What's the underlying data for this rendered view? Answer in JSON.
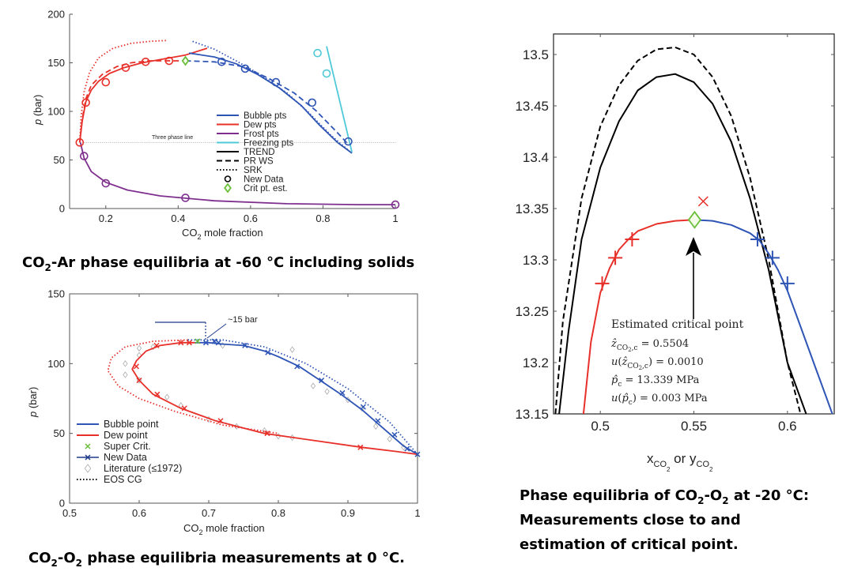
{
  "captions": {
    "ar": {
      "pre": "CO",
      "sub": "2",
      "post": "-Ar phase equilibria at -60 °C including solids"
    },
    "o2_0": {
      "pre": "CO",
      "sub1": "2",
      "mid": "-O",
      "sub2": "2",
      "post": " phase equilibria measurements at 0 °C."
    },
    "o2_20_line1": {
      "pre": "Phase equilibria of CO",
      "sub1": "2",
      "mid": "-O",
      "sub2": "2",
      "post": " at -20 °C:"
    },
    "o2_20_line2": "Measurements close to and",
    "o2_20_line3": "estimation of critical point."
  },
  "chart_data": [
    {
      "id": "co2-ar",
      "type": "line",
      "xlabel": {
        "pre": "CO",
        "sub": "2",
        "post": " mole fraction"
      },
      "ylabel": {
        "italic": "p",
        "post": " (bar)"
      },
      "xlim": [
        0.1,
        1.0
      ],
      "ylim": [
        0,
        200
      ],
      "xticks": [
        0.2,
        0.4,
        0.6,
        0.8,
        1
      ],
      "yticks": [
        0,
        50,
        100,
        150,
        200
      ],
      "annotations": [
        {
          "text": "Three phase line",
          "y": 68
        }
      ],
      "legend_position": "inside-right",
      "legend": [
        {
          "label": "Bubble pts",
          "style": "line",
          "color": "#2e55b5"
        },
        {
          "label": "Dew pts",
          "style": "line",
          "color": "#e8302a"
        },
        {
          "label": "Frost pts",
          "style": "line",
          "color": "#7e2f8e"
        },
        {
          "label": "Freezing pts",
          "style": "line",
          "color": "#4fc9d8"
        },
        {
          "label": "TREND",
          "style": "solid",
          "color": "#000000"
        },
        {
          "label": "PR WS",
          "style": "dashed",
          "color": "#000000"
        },
        {
          "label": "SRK",
          "style": "dotted",
          "color": "#000000"
        },
        {
          "label": "New Data",
          "style": "circle",
          "color": "#000000"
        },
        {
          "label": "Crit pt. est.",
          "style": "diamond",
          "color": "#6abf3a"
        }
      ],
      "series": [
        {
          "name": "Dew pts",
          "color": "#e8302a",
          "style": "solid",
          "x": [
            0.128,
            0.135,
            0.145,
            0.16,
            0.18,
            0.21,
            0.25,
            0.3,
            0.36,
            0.42,
            0.48
          ],
          "y": [
            68,
            90,
            110,
            122,
            131,
            139,
            145,
            150,
            154,
            158,
            165
          ]
        },
        {
          "name": "Dew pts",
          "color": "#e8302a",
          "style": "dashed",
          "x": [
            0.128,
            0.135,
            0.145,
            0.16,
            0.19,
            0.23,
            0.27,
            0.32,
            0.37,
            0.41
          ],
          "y": [
            68,
            92,
            113,
            127,
            138,
            146,
            150,
            152,
            152,
            152
          ]
        },
        {
          "name": "Dew pts",
          "color": "#e8302a",
          "style": "dotted",
          "x": [
            0.128,
            0.132,
            0.14,
            0.155,
            0.18,
            0.22,
            0.27,
            0.32,
            0.37
          ],
          "y": [
            68,
            95,
            120,
            140,
            155,
            165,
            170,
            172,
            173
          ]
        },
        {
          "name": "Bubble pts",
          "color": "#2e55b5",
          "style": "solid",
          "x": [
            0.43,
            0.5,
            0.56,
            0.62,
            0.68,
            0.74,
            0.79,
            0.84,
            0.88
          ],
          "y": [
            160,
            156,
            149,
            138,
            124,
            106,
            86,
            68,
            57
          ]
        },
        {
          "name": "Bubble pts",
          "color": "#2e55b5",
          "style": "dashed",
          "x": [
            0.42,
            0.5,
            0.58,
            0.65,
            0.72,
            0.78,
            0.84,
            0.87
          ],
          "y": [
            152,
            151,
            146,
            134,
            119,
            101,
            78,
            66
          ]
        },
        {
          "name": "Bubble pts",
          "color": "#2e55b5",
          "style": "dotted",
          "x": [
            0.44,
            0.5,
            0.56,
            0.63,
            0.7,
            0.76,
            0.82,
            0.87
          ],
          "y": [
            172,
            164,
            152,
            137,
            119,
            99,
            76,
            60
          ]
        },
        {
          "name": "Frost pts",
          "color": "#7e2f8e",
          "style": "solid",
          "x": [
            0.13,
            0.14,
            0.16,
            0.2,
            0.26,
            0.35,
            0.5,
            0.7,
            0.9,
            1.0
          ],
          "y": [
            68,
            52,
            38,
            27,
            19,
            13,
            8,
            5,
            4,
            4
          ]
        },
        {
          "name": "Freezing pts",
          "color": "#4fc9d8",
          "style": "solid",
          "x": [
            0.81,
            0.88
          ],
          "y": [
            167,
            58
          ]
        },
        {
          "name": "Three phase line",
          "color": "#999999",
          "style": "dotted",
          "x": [
            0.13,
            1.0
          ],
          "y": [
            68,
            68
          ]
        }
      ],
      "points": [
        {
          "name": "New Data",
          "marker": "circle",
          "color": "#e8302a",
          "x": [
            0.128,
            0.145,
            0.2,
            0.255,
            0.31,
            0.375
          ],
          "y": [
            68,
            109,
            130,
            145,
            151,
            152
          ]
        },
        {
          "name": "New Data",
          "marker": "circle",
          "color": "#2e55b5",
          "x": [
            0.52,
            0.585,
            0.67,
            0.77,
            0.87
          ],
          "y": [
            151,
            144,
            130,
            109,
            69
          ]
        },
        {
          "name": "New Data",
          "marker": "circle",
          "color": "#7e2f8e",
          "x": [
            0.14,
            0.2,
            0.42,
            1.0
          ],
          "y": [
            54,
            26,
            11,
            4
          ]
        },
        {
          "name": "New Data",
          "marker": "circle",
          "color": "#4fc9d8",
          "x": [
            0.785,
            0.81
          ],
          "y": [
            160,
            139
          ]
        },
        {
          "name": "Crit pt. est.",
          "marker": "diamond",
          "color": "#6abf3a",
          "x": [
            0.42
          ],
          "y": [
            152
          ]
        }
      ]
    },
    {
      "id": "co2-o2-0c",
      "type": "line",
      "xlabel": {
        "pre": "CO",
        "sub": "2",
        "post": " mole fraction"
      },
      "ylabel": {
        "italic": "p",
        "post": " (bar)"
      },
      "xlim": [
        0.5,
        1.0
      ],
      "ylim": [
        0,
        150
      ],
      "xticks": [
        0.5,
        0.6,
        0.7,
        0.8,
        0.9,
        1
      ],
      "yticks": [
        0,
        50,
        100,
        150
      ],
      "annotations": [
        {
          "text": "~15 bar",
          "x": 0.71,
          "y": 131
        }
      ],
      "legend_position": "inside-lower-left",
      "legend": [
        {
          "label": "Bubble point",
          "style": "line",
          "color": "#2e55b5"
        },
        {
          "label": "Dew point",
          "style": "line",
          "color": "#e8302a"
        },
        {
          "label": "Super Crit.",
          "style": "xmark",
          "color": "#6abf3a"
        },
        {
          "label": "New Data",
          "style": "xline",
          "color": "#1f3b8a"
        },
        {
          "label": "Literature (≤1972)",
          "style": "diamond-open",
          "color": "#aaaaaa"
        },
        {
          "label": "EOS CG",
          "style": "dotted",
          "color": "#000000"
        }
      ],
      "series": [
        {
          "name": "Bubble point",
          "color": "#2e55b5",
          "style": "solid",
          "x": [
            0.68,
            0.7,
            0.72,
            0.75,
            0.78,
            0.8,
            0.83,
            0.86,
            0.89,
            0.92,
            0.95,
            0.98,
            1.0
          ],
          "y": [
            115,
            115,
            114,
            113,
            109,
            105,
            98,
            88,
            78,
            67,
            54,
            41,
            35
          ]
        },
        {
          "name": "Dew point",
          "color": "#e8302a",
          "style": "solid",
          "x": [
            0.68,
            0.66,
            0.63,
            0.61,
            0.596,
            0.59,
            0.6,
            0.62,
            0.66,
            0.71,
            0.78,
            0.85,
            0.92,
            0.97,
            1.0
          ],
          "y": [
            115,
            115,
            113,
            109,
            102,
            96,
            88,
            78,
            68,
            59,
            50,
            45,
            40,
            37,
            35
          ]
        },
        {
          "name": "EOS CG",
          "color": "#e8302a",
          "style": "dotted",
          "x": [
            0.67,
            0.62,
            0.58,
            0.56,
            0.555,
            0.57,
            0.6,
            0.65,
            0.72,
            0.8
          ],
          "y": [
            117,
            116,
            112,
            104,
            95,
            84,
            75,
            66,
            56,
            50
          ]
        },
        {
          "name": "EOS CG",
          "color": "#2e55b5",
          "style": "dotted",
          "x": [
            0.67,
            0.72,
            0.78,
            0.84,
            0.9,
            0.96,
            1.0
          ],
          "y": [
            117,
            117,
            112,
            100,
            82,
            58,
            35
          ]
        }
      ],
      "points": [
        {
          "name": "New Data",
          "marker": "x",
          "color": "#e8302a",
          "x": [
            0.596,
            0.6,
            0.625,
            0.626,
            0.66,
            0.665,
            0.672,
            0.717,
            0.784,
            0.918
          ],
          "y": [
            98,
            88,
            113,
            78,
            115,
            68,
            115,
            59,
            50,
            40
          ]
        },
        {
          "name": "New Data",
          "marker": "x",
          "color": "#2e55b5",
          "x": [
            0.696,
            0.708,
            0.714,
            0.752,
            0.785,
            0.827,
            0.862,
            0.892,
            0.922,
            0.943,
            0.967,
            0.985,
            1.0
          ],
          "y": [
            115,
            116,
            115,
            113,
            108,
            98,
            88,
            79,
            69,
            59,
            49,
            39,
            35
          ]
        },
        {
          "name": "Super Crit.",
          "marker": "x",
          "color": "#6abf3a",
          "x": [
            0.684
          ],
          "y": [
            116
          ]
        },
        {
          "name": "Literature (≤1972)",
          "marker": "diamond-open",
          "color": "#aaaaaa",
          "x": [
            0.58,
            0.6,
            0.62,
            0.6,
            0.58,
            0.64,
            0.66,
            0.7,
            0.74,
            0.78,
            0.8,
            0.82,
            0.85,
            0.87,
            0.9,
            0.92,
            0.94,
            0.96,
            0.98,
            0.6,
            0.72,
            0.82
          ],
          "y": [
            100,
            106,
            112,
            88,
            92,
            76,
            70,
            60,
            55,
            52,
            48,
            47,
            84,
            80,
            74,
            68,
            55,
            46,
            40,
            111,
            113,
            110
          ]
        }
      ]
    },
    {
      "id": "co2-o2-m20c",
      "type": "line",
      "xlabel": {
        "x": "x",
        "xsub": "CO",
        "xsubsub": "2",
        "or": " or y",
        "ysub": "CO",
        "ysubsub": "2"
      },
      "ylabel": "",
      "xlim": [
        0.475,
        0.625
      ],
      "ylim": [
        13.15,
        13.52
      ],
      "xticks": [
        0.5,
        0.55,
        0.6
      ],
      "yticks": [
        13.15,
        13.2,
        13.25,
        13.3,
        13.35,
        13.4,
        13.45,
        13.5
      ],
      "annotations": [
        {
          "kind": "arrow",
          "from": [
            0.55,
            13.235
          ],
          "to": [
            0.55,
            13.328
          ]
        },
        {
          "text": "Estimated critical point"
        },
        {
          "text": "ẑ_CO2,c = 0.5504"
        },
        {
          "text": "u(ẑ_CO2,c) = 0.0010"
        },
        {
          "text": "p̂_c = 13.339 MPa"
        },
        {
          "text": "u(p̂_c) = 0.003 MPa"
        }
      ],
      "series": [
        {
          "name": "TREND (dashed)",
          "color": "#000000",
          "style": "dashed",
          "x": [
            0.476,
            0.48,
            0.49,
            0.5,
            0.51,
            0.52,
            0.53,
            0.54,
            0.55,
            0.56,
            0.57,
            0.58,
            0.59,
            0.6,
            0.607
          ],
          "y": [
            13.15,
            13.24,
            13.36,
            13.43,
            13.47,
            13.494,
            13.505,
            13.507,
            13.5,
            13.478,
            13.44,
            13.38,
            13.3,
            13.2,
            13.15
          ]
        },
        {
          "name": "TREND (solid)",
          "color": "#000000",
          "style": "solid",
          "x": [
            0.478,
            0.483,
            0.49,
            0.5,
            0.51,
            0.52,
            0.53,
            0.54,
            0.55,
            0.56,
            0.57,
            0.58,
            0.59,
            0.6,
            0.61
          ],
          "y": [
            13.15,
            13.23,
            13.32,
            13.39,
            13.435,
            13.465,
            13.478,
            13.481,
            13.473,
            13.452,
            13.415,
            13.36,
            13.29,
            13.2,
            13.15
          ]
        },
        {
          "name": "Dew",
          "color": "#e8302a",
          "style": "solid",
          "x": [
            0.491,
            0.495,
            0.5,
            0.505,
            0.51,
            0.515,
            0.52,
            0.53,
            0.54,
            0.55
          ],
          "y": [
            13.15,
            13.22,
            13.268,
            13.292,
            13.31,
            13.32,
            13.328,
            13.335,
            13.338,
            13.339
          ]
        },
        {
          "name": "Bubble",
          "color": "#2e55b5",
          "style": "solid",
          "x": [
            0.55,
            0.56,
            0.57,
            0.58,
            0.585,
            0.59,
            0.595,
            0.6,
            0.605,
            0.61,
            0.615,
            0.62,
            0.624
          ],
          "y": [
            13.339,
            13.338,
            13.334,
            13.326,
            13.319,
            13.306,
            13.29,
            13.27,
            13.245,
            13.22,
            13.195,
            13.17,
            13.15
          ]
        }
      ],
      "points": [
        {
          "name": "Dew data",
          "marker": "+",
          "color": "#e8302a",
          "x": [
            0.501,
            0.508,
            0.517
          ],
          "y": [
            13.277,
            13.302,
            13.32
          ]
        },
        {
          "name": "Bubble data",
          "marker": "+",
          "color": "#2e55b5",
          "x": [
            0.584,
            0.592,
            0.6
          ],
          "y": [
            13.32,
            13.302,
            13.277
          ]
        },
        {
          "name": "Outlier",
          "marker": "x",
          "color": "#e8302a",
          "x": [
            0.555
          ],
          "y": [
            13.357
          ]
        },
        {
          "name": "Critical point",
          "marker": "diamond",
          "color": "#6abf3a",
          "x": [
            0.5504
          ],
          "y": [
            13.339
          ]
        }
      ]
    }
  ]
}
